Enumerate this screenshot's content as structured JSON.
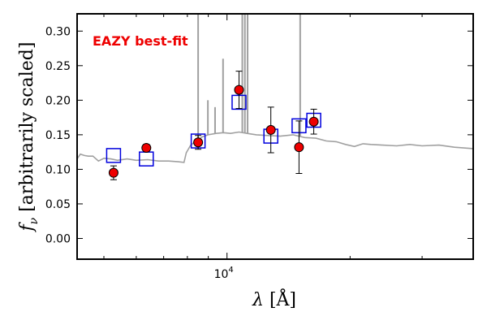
{
  "chart_data": {
    "type": "scatter",
    "annotation": "EAZY best-fit",
    "xlabel": "λ [Å]",
    "ylabel": "f_ν [arbitrarily scaled]",
    "ylabel_parts": {
      "symbol": "f",
      "subscript": "ν",
      "text": " [arbitrarily scaled]"
    },
    "xlabel_parts": {
      "symbol": "λ",
      "text": " [Å]"
    },
    "x_scale": "log",
    "xlim": [
      4300,
      40000
    ],
    "ylim": [
      -0.03,
      0.325
    ],
    "x_tick_labels": [
      {
        "base": "10",
        "exp": "4",
        "value": 10000
      }
    ],
    "y_tick_labels": [
      "0.00",
      "0.05",
      "0.10",
      "0.15",
      "0.20",
      "0.25",
      "0.30"
    ],
    "y_tick_values": [
      0.0,
      0.05,
      0.1,
      0.15,
      0.2,
      0.25,
      0.3
    ],
    "model_color": "#a0a0a0",
    "model_spectrum": [
      [
        4300,
        0.115
      ],
      [
        4380,
        0.122
      ],
      [
        4480,
        0.12
      ],
      [
        4580,
        0.119
      ],
      [
        4700,
        0.119
      ],
      [
        4850,
        0.112
      ],
      [
        5000,
        0.116
      ],
      [
        5200,
        0.115
      ],
      [
        5400,
        0.113
      ],
      [
        5700,
        0.115
      ],
      [
        6000,
        0.113
      ],
      [
        6400,
        0.114
      ],
      [
        6800,
        0.112
      ],
      [
        7200,
        0.112
      ],
      [
        7600,
        0.111
      ],
      [
        7850,
        0.11
      ],
      [
        7950,
        0.124
      ],
      [
        8150,
        0.135
      ],
      [
        8400,
        0.141
      ],
      [
        8700,
        0.147
      ],
      [
        9000,
        0.15
      ],
      [
        9400,
        0.152
      ],
      [
        9800,
        0.153
      ],
      [
        10200,
        0.152
      ],
      [
        10700,
        0.154
      ],
      [
        11200,
        0.152
      ],
      [
        11800,
        0.15
      ],
      [
        12500,
        0.149
      ],
      [
        13500,
        0.148
      ],
      [
        14500,
        0.15
      ],
      [
        15500,
        0.146
      ],
      [
        16500,
        0.145
      ],
      [
        17500,
        0.141
      ],
      [
        18500,
        0.14
      ],
      [
        19500,
        0.136
      ],
      [
        20500,
        0.133
      ],
      [
        21500,
        0.137
      ],
      [
        22500,
        0.136
      ],
      [
        24000,
        0.135
      ],
      [
        26000,
        0.134
      ],
      [
        28000,
        0.136
      ],
      [
        30000,
        0.134
      ],
      [
        33000,
        0.135
      ],
      [
        36000,
        0.132
      ],
      [
        40000,
        0.13
      ]
    ],
    "emission_lines": [
      {
        "x": 8500,
        "peak": 0.325
      },
      {
        "x": 8980,
        "peak": 0.2
      },
      {
        "x": 9350,
        "peak": 0.19
      },
      {
        "x": 9780,
        "peak": 0.26
      },
      {
        "x": 10900,
        "peak": 0.325
      },
      {
        "x": 11060,
        "peak": 0.325
      },
      {
        "x": 11230,
        "peak": 0.325
      },
      {
        "x": 15100,
        "peak": 0.325
      }
    ],
    "series": [
      {
        "marker": "square",
        "edge_color": "#0000dd",
        "points": [
          {
            "x": 5280,
            "y": 0.12
          },
          {
            "x": 6350,
            "y": 0.115
          },
          {
            "x": 8500,
            "y": 0.141
          },
          {
            "x": 10700,
            "y": 0.197
          },
          {
            "x": 12800,
            "y": 0.148
          },
          {
            "x": 15000,
            "y": 0.163
          },
          {
            "x": 16300,
            "y": 0.171
          }
        ]
      },
      {
        "marker": "circle",
        "face_color": "#ee0000",
        "edge_color": "#000000",
        "points": [
          {
            "x": 5280,
            "y": 0.095,
            "err": 0.01
          },
          {
            "x": 6350,
            "y": 0.131,
            "err": 0.005
          },
          {
            "x": 8500,
            "y": 0.139,
            "err": 0.01
          },
          {
            "x": 10700,
            "y": 0.215,
            "err": 0.027
          },
          {
            "x": 12800,
            "y": 0.157,
            "err": 0.033
          },
          {
            "x": 15000,
            "y": 0.132,
            "err": 0.038
          },
          {
            "x": 16300,
            "y": 0.169,
            "err": 0.018
          }
        ]
      }
    ]
  }
}
